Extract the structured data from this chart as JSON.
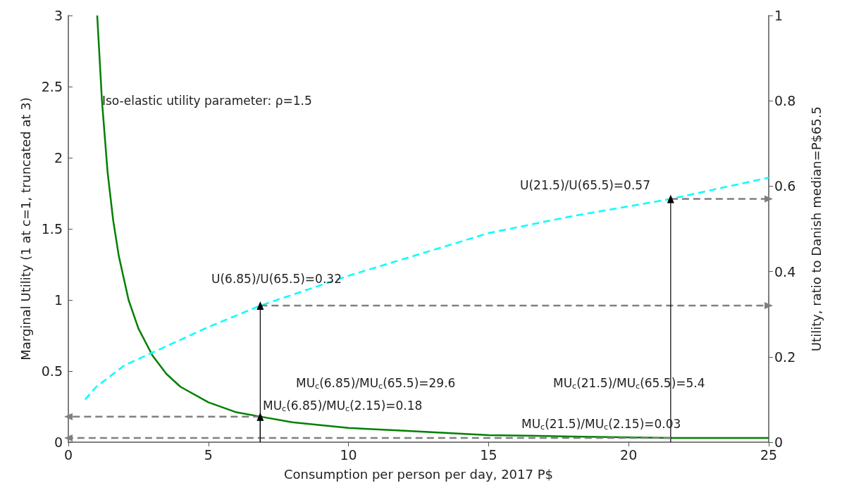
{
  "chart_data": {
    "type": "line",
    "xlabel": "Consumption per person per day, 2017 P$",
    "ylabel": "Marginal Utility (1 at c=1, truncated at 3)",
    "y2label": "Utility, ratio to Danish median=P$65.5",
    "xlim": [
      0,
      25
    ],
    "xticks": [
      0,
      5,
      10,
      15,
      20,
      25
    ],
    "ylim": [
      0,
      3
    ],
    "yticks": [
      0,
      0.5,
      1,
      1.5,
      2,
      2.5,
      3
    ],
    "y2lim": [
      0,
      1
    ],
    "y2ticks": [
      0,
      0.2,
      0.4,
      0.6,
      0.8,
      1
    ],
    "series": [
      {
        "color": "#008000",
        "line_style": "solid",
        "marker": "none",
        "x": [
          1.03,
          1.2,
          1.4,
          1.6,
          1.8,
          2.15,
          2.5,
          3,
          3.5,
          4,
          5,
          6,
          6.85,
          8,
          10,
          12,
          15,
          18,
          21.5,
          25
        ],
        "values": [
          3,
          2.4,
          1.9,
          1.56,
          1.31,
          1,
          0.8,
          0.61,
          0.48,
          0.39,
          0.28,
          0.21,
          0.18,
          0.14,
          0.1,
          0.08,
          0.05,
          0.04,
          0.03,
          0.03
        ]
      },
      {
        "color": "#00ffff",
        "line_style": "dashed",
        "marker": "none",
        "axis": "y2",
        "x": [
          0.6,
          1,
          2,
          3,
          4,
          5,
          6.85,
          10,
          12,
          15,
          18,
          21.5,
          25
        ],
        "values": [
          0.1,
          0.13,
          0.18,
          0.21,
          0.24,
          0.27,
          0.32,
          0.39,
          0.43,
          0.49,
          0.53,
          0.57,
          0.62
        ]
      },
      {
        "color": "#808080",
        "line_style": "dashed",
        "marker": "triangle",
        "x": [
          6.85,
          0
        ],
        "values": [
          0.18,
          0.18
        ]
      },
      {
        "color": "#808080",
        "line_style": "dashed",
        "marker": "triangle",
        "x": [
          21.5,
          0
        ],
        "values": [
          0.03,
          0.03
        ]
      },
      {
        "color": "#808080",
        "line_style": "dashed",
        "marker": "triangle",
        "axis": "y2",
        "x": [
          6.85,
          25
        ],
        "values": [
          0.32,
          0.32
        ]
      },
      {
        "color": "#808080",
        "line_style": "dashed",
        "marker": "triangle",
        "axis": "y2",
        "x": [
          21.5,
          25
        ],
        "values": [
          0.57,
          0.57
        ]
      },
      {
        "color": "#000000",
        "line_style": "solid",
        "marker": "triangle",
        "x": [
          6.85,
          6.85
        ],
        "values": [
          0,
          0.18
        ]
      },
      {
        "color": "#000000",
        "line_style": "solid",
        "marker": "triangle",
        "axis": "y2",
        "x": [
          6.85,
          6.85
        ],
        "values": [
          0,
          0.32
        ]
      },
      {
        "color": "#000000",
        "line_style": "solid",
        "marker": "triangle",
        "axis": "y2",
        "x": [
          21.5,
          21.5
        ],
        "values": [
          0,
          0.57
        ]
      }
    ],
    "annotations": [
      "Iso-elastic utility parameter: ρ=1.5",
      "U(6.85)/U(65.5)=0.32",
      "MU$_{c}$(6.85)/MU$_{c}$(65.5)=29.6",
      "U(21.5)/U(65.5)=0.57",
      "MU$_{c}$(21.5)/MU$_{c}$(65.5)=5.4",
      "MU$_{c}$(6.85)/MU$_{c}$(2.15)=0.18",
      "MU$_{c}$(21.5)/MU$_{c}$(2.15)=0.03"
    ]
  }
}
